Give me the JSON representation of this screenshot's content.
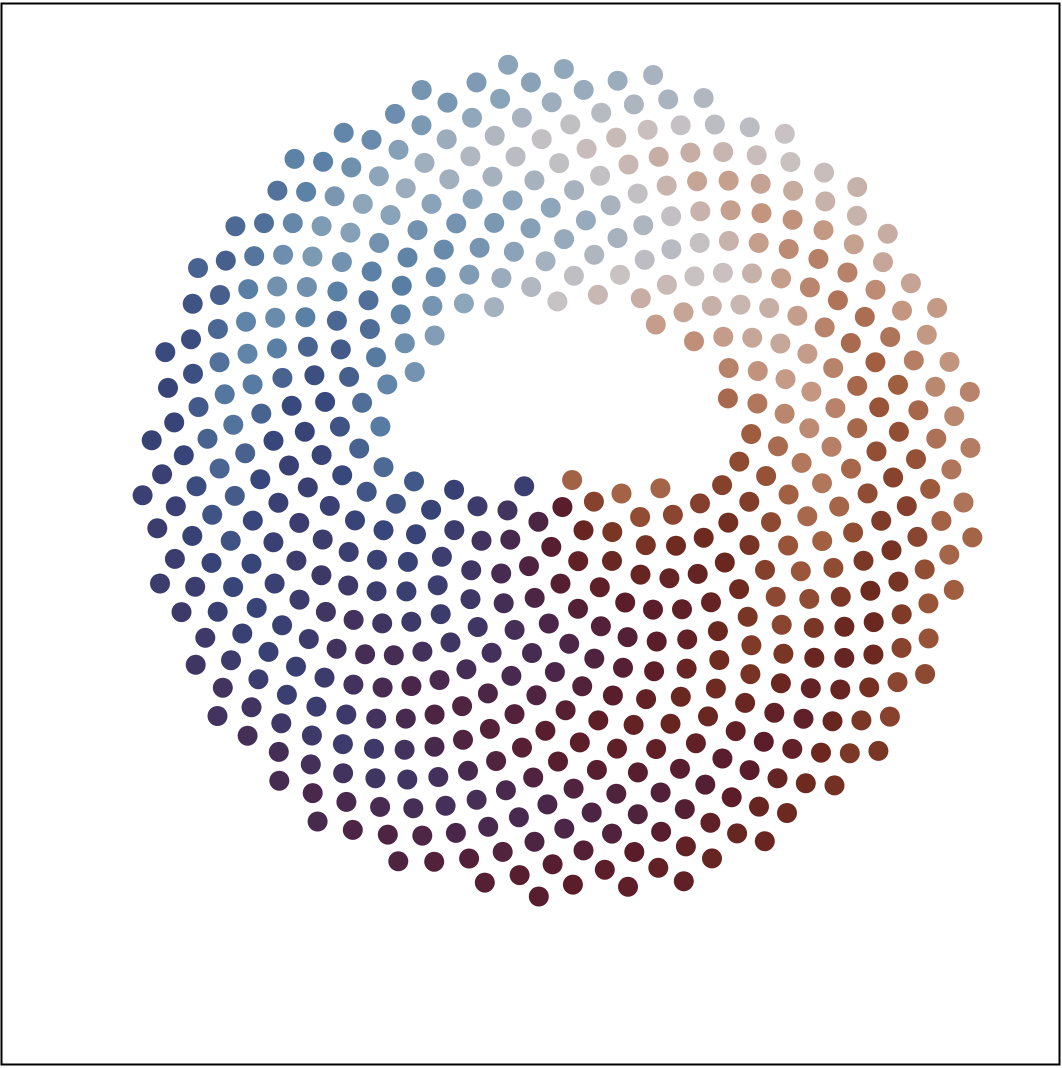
{
  "chart_data": {
    "type": "scatter",
    "title": "",
    "xlabel": "",
    "ylabel": "",
    "xlim": [
      -1.05,
      1.05
    ],
    "ylim": [
      -1.05,
      1.05
    ],
    "axes_visible": false,
    "frame": true,
    "grid": false,
    "legend": "none",
    "point_count": 600,
    "palette": [
      "#3d3a6a",
      "#4a274a",
      "#5a1c2a",
      "#6e2a1e",
      "#9e5a3c",
      "#c49680",
      "#c9c3c4",
      "#8ea6ba",
      "#5b81a6",
      "#37457a"
    ]
  }
}
